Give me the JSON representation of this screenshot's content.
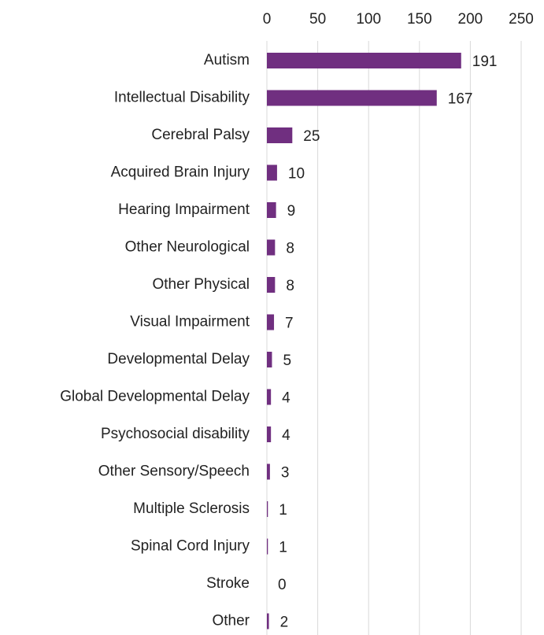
{
  "chart_data": {
    "type": "bar",
    "orientation": "horizontal",
    "categories": [
      "Autism",
      "Intellectual Disability",
      "Cerebral Palsy",
      "Acquired Brain Injury",
      "Hearing Impairment",
      "Other Neurological",
      "Other Physical",
      "Visual Impairment",
      "Developmental Delay",
      "Global Developmental Delay",
      "Psychosocial disability",
      "Other Sensory/Speech",
      "Multiple Sclerosis",
      "Spinal Cord Injury",
      "Stroke",
      "Other"
    ],
    "values": [
      191,
      167,
      25,
      10,
      9,
      8,
      8,
      7,
      5,
      4,
      4,
      3,
      1,
      1,
      0,
      2
    ],
    "color": "#702f80",
    "xlim": [
      0,
      250
    ],
    "xticks": [
      0,
      50,
      100,
      150,
      200,
      250
    ],
    "grid": true
  }
}
